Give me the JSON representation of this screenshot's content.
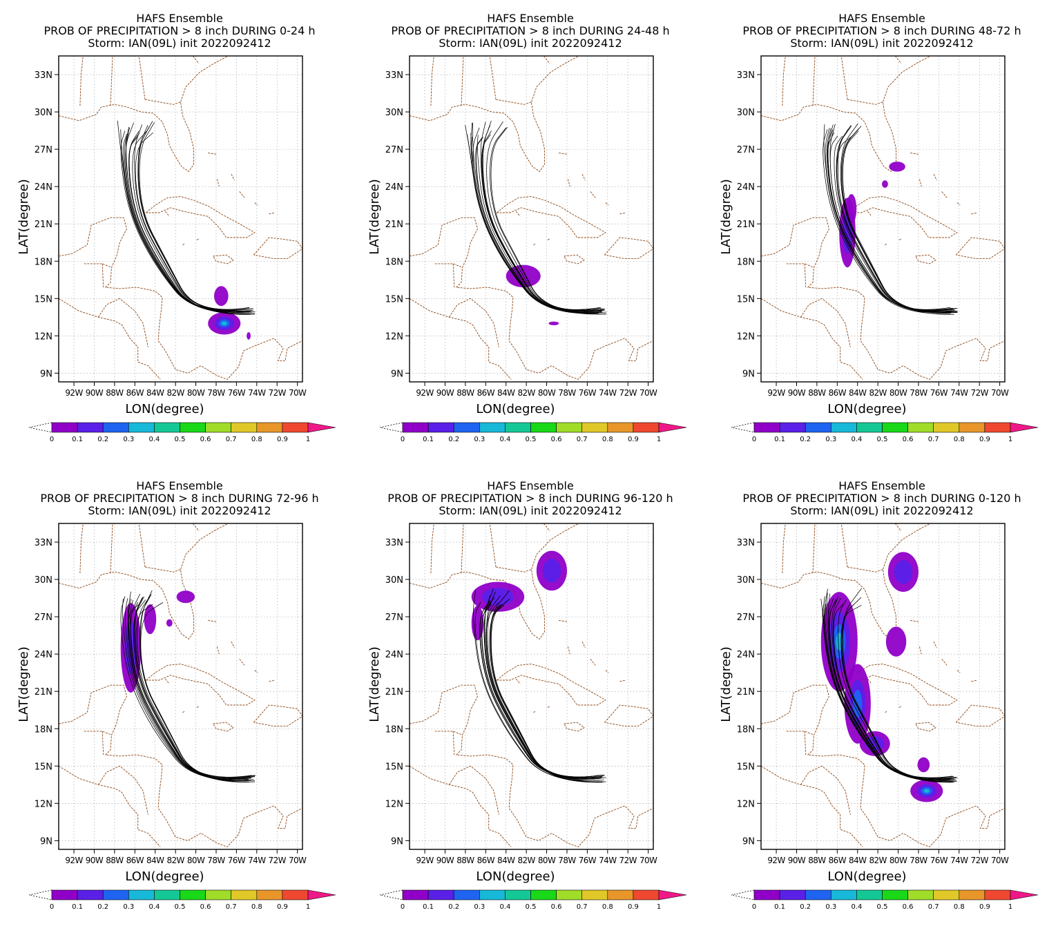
{
  "page": {
    "background": "#ffffff"
  },
  "common": {
    "line1": "HAFS Ensemble",
    "line3": "Storm: IAN(09L) init 2022092412",
    "xlabel": "LON(degree)",
    "ylabel": "LAT(degree)",
    "lat_ticks": [
      "9N",
      "12N",
      "15N",
      "18N",
      "21N",
      "24N",
      "27N",
      "30N",
      "33N"
    ],
    "lon_ticks": [
      "92W",
      "90W",
      "88W",
      "86W",
      "84W",
      "82W",
      "80W",
      "78W",
      "76W",
      "74W",
      "72W",
      "70W"
    ],
    "colorbar_labels": [
      "0",
      "0.1",
      "0.2",
      "0.3",
      "0.4",
      "0.5",
      "0.6",
      "0.7",
      "0.8",
      "0.9",
      "1"
    ],
    "colorbar_colors": [
      "#9000c8",
      "#5a20e8",
      "#1e64f0",
      "#18b8d8",
      "#14c896",
      "#18d818",
      "#a0dc28",
      "#e0c828",
      "#e8962a",
      "#f04830"
    ],
    "overflow_color": "#f01888",
    "track_color": "#000000",
    "coast_color": "#8b4513"
  },
  "chart_data": [
    {
      "type": "heatmap",
      "title": "PROB OF PRECIPITATION > 8 inch DURING  0-24 h",
      "xlabel": "LON(degree)",
      "ylabel": "LAT(degree)",
      "xlim": [
        -93.5,
        -69.5
      ],
      "ylim": [
        8.3,
        34.5
      ],
      "blobs": [
        {
          "lon": -77.2,
          "lat": 13.0,
          "rx": 1.6,
          "ry": 0.9,
          "p": 0.25
        },
        {
          "lon": -77.5,
          "lat": 15.2,
          "rx": 0.7,
          "ry": 0.8,
          "p": 0.08
        },
        {
          "lon": -74.8,
          "lat": 12.0,
          "rx": 0.2,
          "ry": 0.3,
          "p": 0.05
        }
      ]
    },
    {
      "type": "heatmap",
      "title": "PROB OF PRECIPITATION > 8 inch DURING 24-48 h",
      "xlabel": "LON(degree)",
      "ylabel": "LAT(degree)",
      "xlim": [
        -93.5,
        -69.5
      ],
      "ylim": [
        8.3,
        34.5
      ],
      "blobs": [
        {
          "lon": -82.3,
          "lat": 16.8,
          "rx": 1.7,
          "ry": 0.9,
          "p": 0.08
        },
        {
          "lon": -79.3,
          "lat": 13.0,
          "rx": 0.5,
          "ry": 0.15,
          "p": 0.05
        }
      ]
    },
    {
      "type": "heatmap",
      "title": "PROB OF PRECIPITATION > 8 inch DURING 48-72 h",
      "xlabel": "LON(degree)",
      "ylabel": "LAT(degree)",
      "xlim": [
        -93.5,
        -69.5
      ],
      "ylim": [
        8.3,
        34.5
      ],
      "blobs": [
        {
          "lon": -85.0,
          "lat": 20.3,
          "rx": 0.8,
          "ry": 2.8,
          "p": 0.15
        },
        {
          "lon": -84.6,
          "lat": 22.2,
          "rx": 0.5,
          "ry": 1.2,
          "p": 0.08
        },
        {
          "lon": -80.1,
          "lat": 25.6,
          "rx": 0.8,
          "ry": 0.4,
          "p": 0.08
        },
        {
          "lon": -81.3,
          "lat": 24.2,
          "rx": 0.3,
          "ry": 0.3,
          "p": 0.05
        }
      ]
    },
    {
      "type": "heatmap",
      "title": "PROB OF PRECIPITATION > 8 inch DURING 72-96 h",
      "xlabel": "LON(degree)",
      "ylabel": "LAT(degree)",
      "xlim": [
        -93.5,
        -69.5
      ],
      "ylim": [
        8.3,
        34.5
      ],
      "blobs": [
        {
          "lon": -86.4,
          "lat": 24.5,
          "rx": 1.0,
          "ry": 3.6,
          "p": 0.18
        },
        {
          "lon": -84.5,
          "lat": 26.8,
          "rx": 0.6,
          "ry": 1.2,
          "p": 0.08
        },
        {
          "lon": -81.0,
          "lat": 28.6,
          "rx": 0.9,
          "ry": 0.5,
          "p": 0.07
        },
        {
          "lon": -82.6,
          "lat": 26.5,
          "rx": 0.3,
          "ry": 0.3,
          "p": 0.05
        }
      ]
    },
    {
      "type": "heatmap",
      "title": "PROB OF PRECIPITATION > 8 inch DURING 96-120 h",
      "xlabel": "LON(degree)",
      "ylabel": "LAT(degree)",
      "xlim": [
        -93.5,
        -69.5
      ],
      "ylim": [
        8.3,
        34.5
      ],
      "blobs": [
        {
          "lon": -84.8,
          "lat": 28.6,
          "rx": 2.6,
          "ry": 1.2,
          "p": 0.15
        },
        {
          "lon": -86.8,
          "lat": 26.5,
          "rx": 0.6,
          "ry": 1.4,
          "p": 0.08
        },
        {
          "lon": -79.5,
          "lat": 30.7,
          "rx": 1.5,
          "ry": 1.6,
          "p": 0.15
        }
      ]
    },
    {
      "type": "heatmap",
      "title": "PROB OF PRECIPITATION > 8 inch DURING 0-120 h",
      "xlabel": "LON(degree)",
      "ylabel": "LAT(degree)",
      "xlim": [
        -93.5,
        -69.5
      ],
      "ylim": [
        8.3,
        34.5
      ],
      "blobs": [
        {
          "lon": -85.8,
          "lat": 25.0,
          "rx": 1.8,
          "ry": 4.0,
          "p": 0.25
        },
        {
          "lon": -84.0,
          "lat": 20.0,
          "rx": 1.3,
          "ry": 3.2,
          "p": 0.2
        },
        {
          "lon": -82.3,
          "lat": 16.8,
          "rx": 1.5,
          "ry": 1.0,
          "p": 0.1
        },
        {
          "lon": -77.2,
          "lat": 13.0,
          "rx": 1.6,
          "ry": 0.9,
          "p": 0.3
        },
        {
          "lon": -77.5,
          "lat": 15.1,
          "rx": 0.6,
          "ry": 0.6,
          "p": 0.08
        },
        {
          "lon": -79.5,
          "lat": 30.6,
          "rx": 1.5,
          "ry": 1.6,
          "p": 0.18
        },
        {
          "lon": -80.2,
          "lat": 25.0,
          "rx": 1.0,
          "ry": 1.2,
          "p": 0.07
        }
      ]
    }
  ]
}
